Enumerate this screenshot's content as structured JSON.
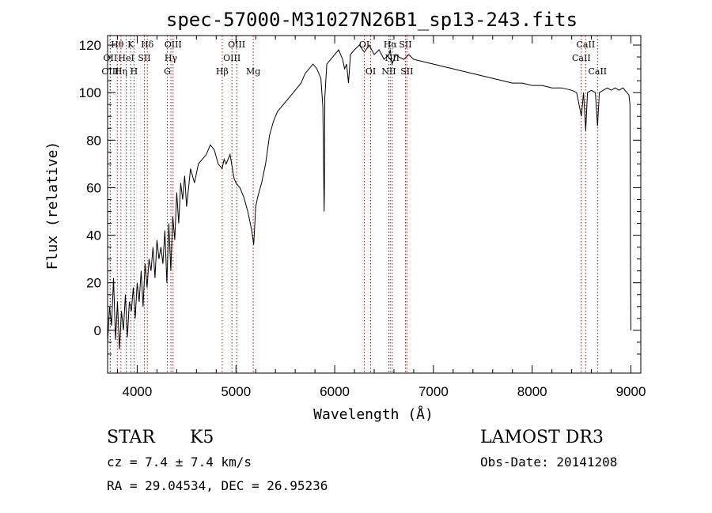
{
  "chart_data": {
    "type": "line",
    "title": "spec-57000-M31027N26B1_sp13-243.fits",
    "xlabel": "Wavelength (Å)",
    "ylabel": "Flux (relative)",
    "xlim": [
      3700,
      9100
    ],
    "ylim": [
      -18,
      124
    ],
    "xticks": [
      {
        "value": 4000,
        "label": "4000"
      },
      {
        "value": 5000,
        "label": "5000"
      },
      {
        "value": 6000,
        "label": "6000"
      },
      {
        "value": 7000,
        "label": "7000"
      },
      {
        "value": 8000,
        "label": "8000"
      },
      {
        "value": 9000,
        "label": "9000"
      }
    ],
    "yticks": [
      {
        "value": 0,
        "label": "0"
      },
      {
        "value": 20,
        "label": "20"
      },
      {
        "value": 40,
        "label": "40"
      },
      {
        "value": 60,
        "label": "60"
      },
      {
        "value": 80,
        "label": "80"
      },
      {
        "value": 100,
        "label": "100"
      },
      {
        "value": 120,
        "label": "120"
      }
    ],
    "series": [
      {
        "name": "flux",
        "x": [
          3700,
          3720,
          3740,
          3760,
          3780,
          3800,
          3820,
          3840,
          3860,
          3880,
          3900,
          3920,
          3940,
          3960,
          3980,
          4000,
          4020,
          4040,
          4060,
          4080,
          4100,
          4120,
          4140,
          4160,
          4180,
          4200,
          4220,
          4240,
          4260,
          4280,
          4300,
          4320,
          4340,
          4360,
          4380,
          4400,
          4420,
          4440,
          4460,
          4480,
          4500,
          4540,
          4580,
          4620,
          4660,
          4700,
          4740,
          4780,
          4820,
          4860,
          4880,
          4900,
          4940,
          4980,
          5000,
          5040,
          5080,
          5120,
          5160,
          5180,
          5190,
          5200,
          5220,
          5260,
          5300,
          5340,
          5380,
          5420,
          5460,
          5500,
          5540,
          5580,
          5620,
          5660,
          5700,
          5740,
          5780,
          5820,
          5860,
          5880,
          5890,
          5893,
          5896,
          5900,
          5920,
          5960,
          6000,
          6040,
          6080,
          6100,
          6120,
          6140,
          6160,
          6200,
          6250,
          6300,
          6350,
          6400,
          6450,
          6500,
          6550,
          6563,
          6580,
          6620,
          6650,
          6700,
          6750,
          6800,
          6900,
          7000,
          7100,
          7200,
          7300,
          7400,
          7500,
          7600,
          7700,
          7800,
          7900,
          8000,
          8100,
          8200,
          8300,
          8400,
          8450,
          8498,
          8520,
          8542,
          8560,
          8600,
          8640,
          8662,
          8680,
          8720,
          8760,
          8800,
          8840,
          8880,
          8920,
          8960,
          8980,
          8990,
          8995,
          9000
        ],
        "y": [
          -5,
          10,
          2,
          22,
          -4,
          12,
          -8,
          8,
          0,
          15,
          -3,
          12,
          8,
          18,
          5,
          20,
          12,
          25,
          10,
          28,
          18,
          30,
          25,
          35,
          22,
          38,
          30,
          35,
          28,
          42,
          20,
          45,
          25,
          48,
          38,
          58,
          45,
          62,
          55,
          65,
          52,
          68,
          62,
          70,
          72,
          74,
          78,
          76,
          70,
          68,
          72,
          70,
          74,
          64,
          62,
          60,
          56,
          50,
          42,
          36,
          44,
          52,
          56,
          62,
          70,
          82,
          88,
          92,
          94,
          96,
          98,
          100,
          102,
          104,
          108,
          110,
          112,
          110,
          106,
          94,
          62,
          50,
          60,
          98,
          112,
          114,
          116,
          118,
          114,
          110,
          112,
          104,
          116,
          118,
          120,
          117,
          120,
          116,
          118,
          114,
          116,
          118,
          112,
          116,
          115,
          114,
          116,
          114,
          113,
          112,
          111,
          110,
          109,
          108,
          107,
          106,
          105,
          104,
          104,
          103,
          103,
          102,
          102,
          101,
          100,
          90,
          100,
          84,
          100,
          101,
          100,
          86,
          100,
          101,
          102,
          101,
          102,
          101,
          102,
          100,
          99,
          95,
          30,
          0
        ]
      }
    ],
    "spectral_lines": [
      {
        "label": "Hθ",
        "wave": 3798,
        "row": 0
      },
      {
        "label": "OII",
        "wave": 3727,
        "row": 1
      },
      {
        "label": "OIII",
        "wave": 3727,
        "row": 2
      },
      {
        "label": "Hη",
        "wave": 3835,
        "row": 2
      },
      {
        "label": "HeI",
        "wave": 3889,
        "row": 1
      },
      {
        "label": "K",
        "wave": 3934,
        "row": 0
      },
      {
        "label": "H",
        "wave": 3968,
        "row": 2
      },
      {
        "label": "SII",
        "wave": 4072,
        "row": 1
      },
      {
        "label": "Hδ",
        "wave": 4102,
        "row": 0
      },
      {
        "label": "OIII",
        "wave": 4363,
        "row": 0
      },
      {
        "label": "Hγ",
        "wave": 4341,
        "row": 1
      },
      {
        "label": "G",
        "wave": 4305,
        "row": 2
      },
      {
        "label": "Hβ",
        "wave": 4861,
        "row": 2
      },
      {
        "label": "OIII",
        "wave": 4959,
        "row": 1
      },
      {
        "label": "OIII",
        "wave": 5007,
        "row": 0
      },
      {
        "label": "Mg",
        "wave": 5175,
        "row": 2
      },
      {
        "label": "OI",
        "wave": 6300,
        "row": 0
      },
      {
        "label": "OI",
        "wave": 6364,
        "row": 2
      },
      {
        "label": "Hα",
        "wave": 6563,
        "row": 0
      },
      {
        "label": "NII",
        "wave": 6548,
        "row": 2
      },
      {
        "label": "NII",
        "wave": 6583,
        "row": 1
      },
      {
        "label": "SII",
        "wave": 6716,
        "row": 0
      },
      {
        "label": "SII",
        "wave": 6731,
        "row": 2
      },
      {
        "label": "CaII",
        "wave": 8498,
        "row": 1
      },
      {
        "label": "CaII",
        "wave": 8542,
        "row": 0
      },
      {
        "label": "CaII",
        "wave": 8662,
        "row": 2
      }
    ]
  },
  "info": {
    "object_class": "STAR",
    "subclass": "K5",
    "survey": "LAMOST DR3",
    "cz": "cz = 7.4 ± 7.4 km/s",
    "obs_date": "Obs-Date: 20141208",
    "coords": "RA =  29.04534, DEC =  26.95236"
  },
  "colors": {
    "line": "#000000",
    "marker": "#cc0000",
    "background": "#ffffff"
  }
}
